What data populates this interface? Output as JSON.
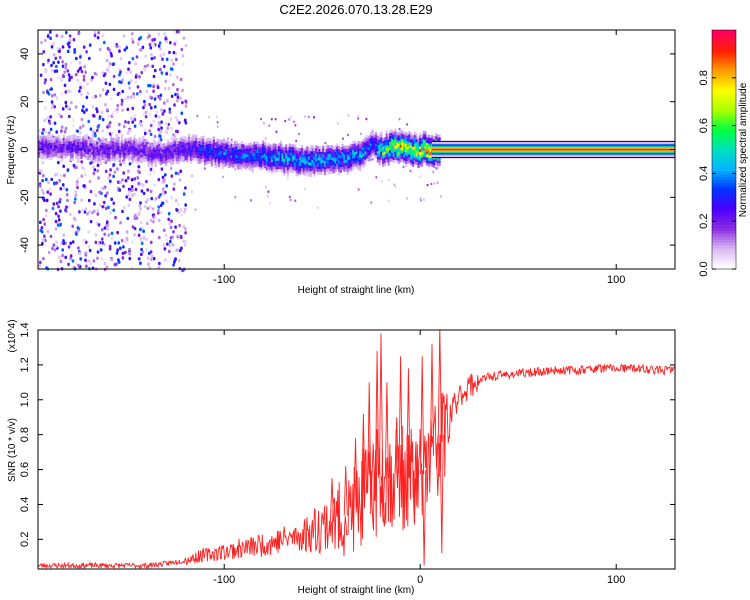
{
  "title": "C2E2.2026.070.13.28.E29",
  "chart_data": [
    {
      "type": "heatmap",
      "title": "C2E2.2026.070.13.28.E29",
      "xlabel": "Height of straight line (km)",
      "ylabel": "Frequency (Hz)",
      "xlim": [
        -195,
        130
      ],
      "ylim": [
        -50,
        50
      ],
      "xticks": [
        -100,
        100
      ],
      "yticks": [
        -40,
        -20,
        0,
        20,
        40
      ],
      "colorbar": {
        "label": "Normalized spectral amplitude",
        "range": [
          0.0,
          1.0
        ],
        "ticks": [
          0.0,
          0.2,
          0.4,
          0.6,
          0.8
        ],
        "tick_labels": [
          "0.0",
          "0.2",
          "0.4",
          "0.6",
          "0.8"
        ],
        "colormap": [
          "#ffffff",
          "#d8b6f2",
          "#8a2be2",
          "#4b00ff",
          "#0033ff",
          "#00b4ff",
          "#00e0c0",
          "#00ff40",
          "#a8ff00",
          "#ffff00",
          "#ffa000",
          "#ff2000",
          "#ff0060"
        ]
      },
      "ridge": {
        "x": [
          -195,
          -180,
          -165,
          -150,
          -135,
          -120,
          -110,
          -100,
          -90,
          -80,
          -70,
          -60,
          -50,
          -40,
          -34,
          -30,
          -27,
          -24,
          -22,
          -18,
          -14,
          -10,
          -6,
          -2,
          2,
          5,
          10,
          20,
          40,
          60,
          80,
          100,
          120,
          130
        ],
        "y": [
          1,
          2,
          0,
          1,
          -1,
          1,
          0,
          -1,
          -2,
          -2,
          -3,
          -4,
          -4,
          -3,
          -2,
          -1,
          1,
          3,
          0,
          1,
          2,
          1,
          1,
          0,
          1,
          0,
          0,
          0,
          0,
          0,
          0,
          0,
          0,
          0
        ],
        "amplitude": [
          0.25,
          0.25,
          0.25,
          0.25,
          0.25,
          0.3,
          0.35,
          0.4,
          0.4,
          0.45,
          0.5,
          0.5,
          0.45,
          0.45,
          0.45,
          0.5,
          0.4,
          0.35,
          0.55,
          0.7,
          0.8,
          0.85,
          0.85,
          0.85,
          0.9,
          0.95,
          0.97,
          0.97,
          0.97,
          0.97,
          0.97,
          0.97,
          0.97,
          0.97
        ]
      },
      "noise_region_x": [
        -195,
        -120
      ]
    },
    {
      "type": "line",
      "xlabel": "Height of straight line (km)",
      "ylabel": "SNR (10 * v/v)",
      "y_multiplier": "(x10^4)",
      "xlim": [
        -195,
        130
      ],
      "ylim": [
        0.03,
        1.4
      ],
      "xticks": [
        -100,
        0,
        100
      ],
      "yticks": [
        0.2,
        0.4,
        0.6,
        0.8,
        1.0,
        1.2,
        1.4
      ],
      "series": [
        {
          "name": "SNR",
          "color": "#ff2020",
          "x": [
            -195,
            -180,
            -160,
            -140,
            -130,
            -120,
            -110,
            -100,
            -90,
            -80,
            -70,
            -60,
            -55,
            -50,
            -45,
            -40,
            -35,
            -30,
            -27,
            -24,
            -21,
            -18,
            -15,
            -12,
            -9,
            -6,
            -3,
            0,
            3,
            6,
            9,
            12,
            15,
            18,
            21,
            25,
            30,
            35,
            40,
            50,
            60,
            70,
            80,
            90,
            100,
            110,
            120,
            130
          ],
          "y": [
            0.05,
            0.05,
            0.05,
            0.05,
            0.06,
            0.08,
            0.11,
            0.13,
            0.15,
            0.17,
            0.2,
            0.22,
            0.25,
            0.28,
            0.3,
            0.32,
            0.36,
            0.42,
            0.45,
            0.5,
            0.58,
            0.55,
            0.55,
            0.58,
            0.55,
            0.55,
            0.55,
            0.55,
            0.62,
            0.68,
            0.75,
            0.82,
            0.9,
            0.98,
            1.04,
            1.08,
            1.11,
            1.13,
            1.14,
            1.15,
            1.16,
            1.17,
            1.17,
            1.18,
            1.18,
            1.18,
            1.17,
            1.17
          ]
        }
      ],
      "spikes": {
        "x": [
          -45,
          -38,
          -33,
          -29,
          -26,
          -24,
          -22,
          -20,
          -19,
          -17,
          -12,
          -10,
          -6,
          -3,
          1,
          2,
          6,
          9,
          10,
          11
        ],
        "y": [
          0.55,
          0.62,
          0.78,
          0.92,
          1.1,
          0.75,
          1.28,
          1.38,
          0.3,
          1.1,
          0.9,
          1.25,
          1.18,
          0.3,
          1.25,
          0.05,
          1.32,
          0.45,
          1.42,
          0.12
        ]
      }
    }
  ]
}
